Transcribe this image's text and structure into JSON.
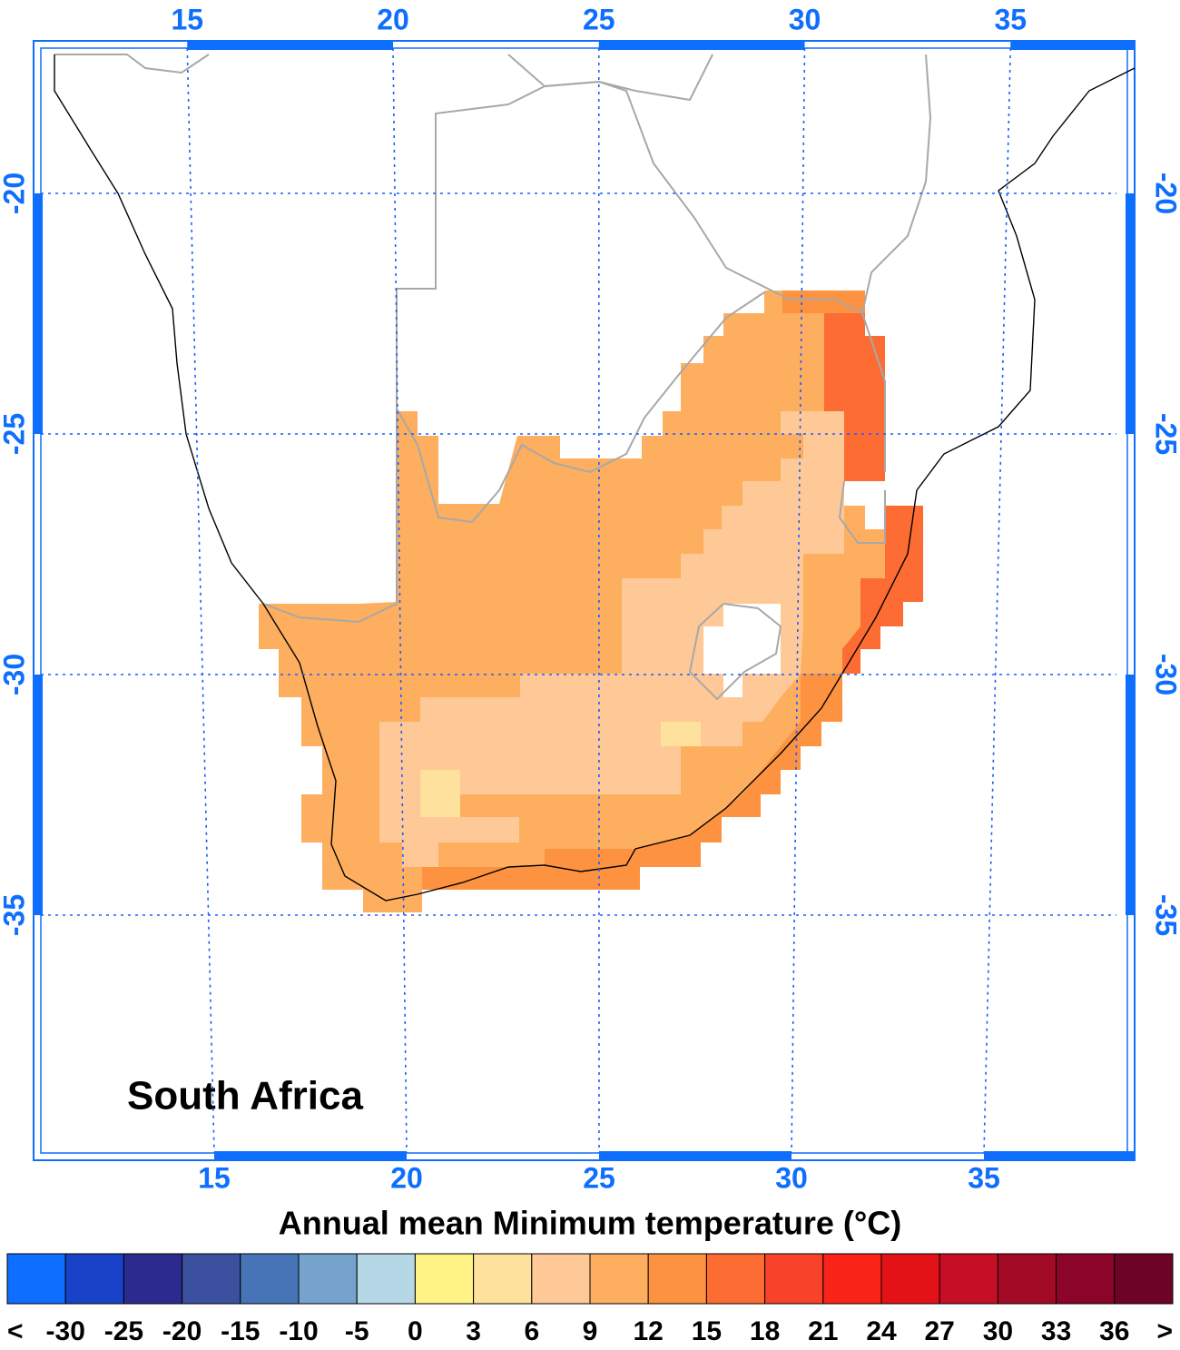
{
  "map": {
    "label": "South Africa",
    "lon_ticks": [
      15,
      20,
      25,
      30,
      35
    ],
    "lat_ticks": [
      -20,
      -25,
      -30,
      -35
    ]
  },
  "colorbar": {
    "title": "Annual mean Minimum temperature (°C)",
    "labels": [
      "<",
      -30,
      -25,
      -20,
      -15,
      -10,
      -5,
      0,
      3,
      6,
      9,
      12,
      15,
      18,
      21,
      24,
      27,
      30,
      33,
      36,
      ">"
    ],
    "colors": [
      "#0e6efe",
      "#1843c8",
      "#2b2a8e",
      "#3c50a0",
      "#4674b7",
      "#76a3cc",
      "#b6d8e6",
      "#fff385",
      "#fee19c",
      "#fec996",
      "#fdae5f",
      "#fd9240",
      "#fd6c32",
      "#f8422a",
      "#f92318",
      "#e31217",
      "#c60f27",
      "#a30a25",
      "#8b0528",
      "#6d0427"
    ]
  }
}
